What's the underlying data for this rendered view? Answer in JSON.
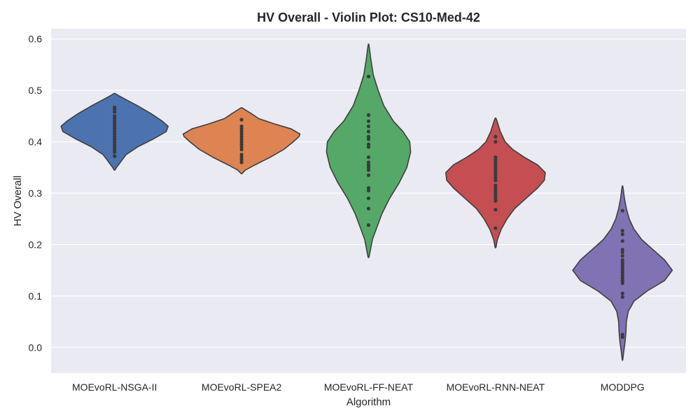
{
  "chart_data": {
    "type": "violin",
    "title": "HV Overall - Violin Plot: CS10-Med-42",
    "xlabel": "Algorithm",
    "ylabel": "HV Overall",
    "ylim": [
      -0.05,
      0.62
    ],
    "yticks": [
      0.0,
      0.1,
      0.2,
      0.3,
      0.4,
      0.5,
      0.6
    ],
    "ytick_labels": [
      "0.0",
      "0.1",
      "0.2",
      "0.3",
      "0.4",
      "0.5",
      "0.6"
    ],
    "grid": true,
    "background": "#eaeaf2",
    "series": [
      {
        "name": "MOEvoRL-NSGA-II",
        "color": "#4c72b0",
        "profile": [
          [
            0.345,
            0.002
          ],
          [
            0.35,
            0.01
          ],
          [
            0.36,
            0.03
          ],
          [
            0.375,
            0.06
          ],
          [
            0.39,
            0.12
          ],
          [
            0.405,
            0.2
          ],
          [
            0.42,
            0.27
          ],
          [
            0.43,
            0.28
          ],
          [
            0.44,
            0.25
          ],
          [
            0.455,
            0.19
          ],
          [
            0.47,
            0.12
          ],
          [
            0.48,
            0.07
          ],
          [
            0.49,
            0.02
          ],
          [
            0.494,
            0.003
          ]
        ],
        "points": [
          0.372,
          0.38,
          0.385,
          0.39,
          0.395,
          0.4,
          0.405,
          0.41,
          0.415,
          0.42,
          0.425,
          0.43,
          0.435,
          0.44,
          0.445,
          0.45,
          0.458,
          0.463,
          0.467
        ]
      },
      {
        "name": "MOEvoRL-SPEA2",
        "color": "#dd8452",
        "profile": [
          [
            0.338,
            0.002
          ],
          [
            0.345,
            0.02
          ],
          [
            0.355,
            0.07
          ],
          [
            0.37,
            0.15
          ],
          [
            0.385,
            0.22
          ],
          [
            0.4,
            0.27
          ],
          [
            0.41,
            0.3
          ],
          [
            0.415,
            0.305
          ],
          [
            0.425,
            0.26
          ],
          [
            0.435,
            0.17
          ],
          [
            0.445,
            0.09
          ],
          [
            0.455,
            0.05
          ],
          [
            0.462,
            0.02
          ],
          [
            0.466,
            0.003
          ]
        ],
        "points": [
          0.36,
          0.365,
          0.37,
          0.375,
          0.385,
          0.39,
          0.395,
          0.4,
          0.405,
          0.41,
          0.415,
          0.42,
          0.425,
          0.43,
          0.443
        ]
      },
      {
        "name": "MOEvoRL-FF-NEAT",
        "color": "#55a868",
        "profile": [
          [
            0.175,
            0.002
          ],
          [
            0.19,
            0.01
          ],
          [
            0.21,
            0.02
          ],
          [
            0.23,
            0.04
          ],
          [
            0.26,
            0.07
          ],
          [
            0.29,
            0.11
          ],
          [
            0.32,
            0.16
          ],
          [
            0.35,
            0.2
          ],
          [
            0.38,
            0.22
          ],
          [
            0.4,
            0.215
          ],
          [
            0.42,
            0.18
          ],
          [
            0.44,
            0.13
          ],
          [
            0.47,
            0.08
          ],
          [
            0.5,
            0.05
          ],
          [
            0.53,
            0.025
          ],
          [
            0.56,
            0.012
          ],
          [
            0.58,
            0.005
          ],
          [
            0.59,
            0.001
          ]
        ],
        "points": [
          0.238,
          0.27,
          0.29,
          0.305,
          0.31,
          0.335,
          0.345,
          0.35,
          0.355,
          0.36,
          0.37,
          0.39,
          0.395,
          0.405,
          0.41,
          0.42,
          0.43,
          0.44,
          0.452,
          0.527
        ]
      },
      {
        "name": "MOEvoRL-RNN-NEAT",
        "color": "#c44e52",
        "profile": [
          [
            0.194,
            0.002
          ],
          [
            0.21,
            0.01
          ],
          [
            0.23,
            0.03
          ],
          [
            0.25,
            0.06
          ],
          [
            0.27,
            0.1
          ],
          [
            0.29,
            0.16
          ],
          [
            0.31,
            0.22
          ],
          [
            0.325,
            0.255
          ],
          [
            0.34,
            0.26
          ],
          [
            0.355,
            0.22
          ],
          [
            0.37,
            0.15
          ],
          [
            0.385,
            0.09
          ],
          [
            0.4,
            0.05
          ],
          [
            0.42,
            0.025
          ],
          [
            0.44,
            0.008
          ],
          [
            0.446,
            0.002
          ]
        ],
        "points": [
          0.232,
          0.268,
          0.285,
          0.29,
          0.295,
          0.3,
          0.305,
          0.31,
          0.315,
          0.325,
          0.33,
          0.335,
          0.34,
          0.345,
          0.35,
          0.355,
          0.36,
          0.365,
          0.37,
          0.4,
          0.41
        ]
      },
      {
        "name": "MODDPG",
        "color": "#8172b3",
        "profile": [
          [
            -0.025,
            0.001
          ],
          [
            -0.01,
            0.006
          ],
          [
            0.01,
            0.013
          ],
          [
            0.03,
            0.018
          ],
          [
            0.05,
            0.02
          ],
          [
            0.07,
            0.03
          ],
          [
            0.09,
            0.06
          ],
          [
            0.11,
            0.13
          ],
          [
            0.13,
            0.22
          ],
          [
            0.15,
            0.26
          ],
          [
            0.17,
            0.22
          ],
          [
            0.19,
            0.16
          ],
          [
            0.21,
            0.1
          ],
          [
            0.23,
            0.06
          ],
          [
            0.25,
            0.035
          ],
          [
            0.27,
            0.02
          ],
          [
            0.29,
            0.01
          ],
          [
            0.31,
            0.003
          ],
          [
            0.314,
            0.001
          ]
        ],
        "points": [
          0.02,
          0.025,
          0.098,
          0.105,
          0.125,
          0.13,
          0.135,
          0.14,
          0.145,
          0.15,
          0.155,
          0.16,
          0.165,
          0.17,
          0.178,
          0.185,
          0.19,
          0.207,
          0.22,
          0.227,
          0.266
        ]
      }
    ]
  }
}
